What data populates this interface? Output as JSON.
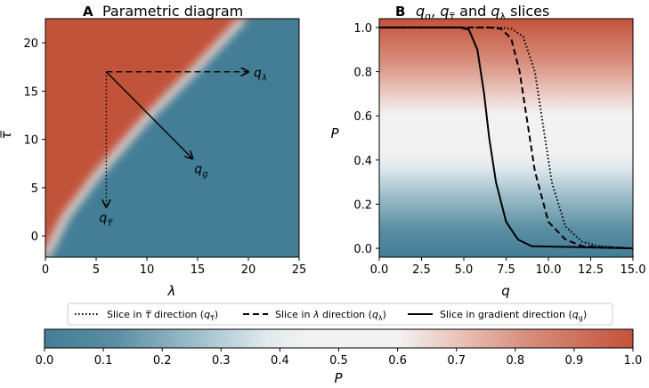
{
  "colors": {
    "low": "#437e96",
    "mid": "#f2f2f2",
    "high": "#c2533a"
  },
  "chart_data": [
    {
      "type": "heatmap",
      "panel_label": "A",
      "title": "Parametric diagram",
      "xlabel": "λ",
      "ylabel": "τ̅",
      "xlim": [
        0,
        25
      ],
      "ylim": [
        -2.2,
        22.5
      ],
      "xticks": [
        0,
        5,
        10,
        15,
        20,
        25
      ],
      "yticks": [
        0,
        5,
        10,
        15,
        20
      ],
      "boundary": [
        [
          0,
          -2.2
        ],
        [
          2,
          2
        ],
        [
          5,
          6.2
        ],
        [
          10,
          12.2
        ],
        [
          15,
          17.5
        ],
        [
          19.5,
          22.5
        ]
      ],
      "arrow_origin": [
        6,
        17
      ],
      "arrows": [
        {
          "name": "q_lambda",
          "label": "q",
          "sub": "λ",
          "to": [
            20,
            17
          ],
          "style": "dashed"
        },
        {
          "name": "q_tau",
          "label": "q",
          "sub": "τ̅",
          "to": [
            6,
            3
          ],
          "style": "dotted"
        },
        {
          "name": "q_g",
          "label": "q",
          "sub": "g",
          "to": [
            14.5,
            8
          ],
          "style": "solid"
        }
      ]
    },
    {
      "type": "line",
      "panel_label": "B",
      "title_parts": [
        "q",
        "g",
        ", ",
        "q",
        "τ̅",
        " and ",
        "q",
        "λ",
        " slices"
      ],
      "xlabel": "q",
      "ylabel": "P",
      "xlim": [
        0,
        15
      ],
      "ylim": [
        -0.04,
        1.04
      ],
      "xticks": [
        0.0,
        2.5,
        5.0,
        7.5,
        10.0,
        12.5,
        15.0
      ],
      "yticks": [
        0.0,
        0.2,
        0.4,
        0.6,
        0.8,
        1.0
      ],
      "background": "horizontal colormap of P",
      "series": [
        {
          "name": "Slice in τ̅ direction (q_τ̅)",
          "style": "dotted",
          "x": [
            0,
            7,
            7.8,
            8.5,
            9.2,
            9.6,
            10.2,
            11,
            12,
            13,
            15
          ],
          "y": [
            1,
            1,
            0.995,
            0.96,
            0.8,
            0.6,
            0.3,
            0.1,
            0.03,
            0.01,
            0
          ]
        },
        {
          "name": "Slice in λ direction (q_λ)",
          "style": "dashed",
          "x": [
            0,
            6.5,
            7.2,
            7.8,
            8.3,
            8.7,
            9.2,
            10,
            11,
            12,
            15
          ],
          "y": [
            1,
            1,
            0.995,
            0.95,
            0.8,
            0.6,
            0.35,
            0.12,
            0.04,
            0.01,
            0
          ]
        },
        {
          "name": "Slice in gradient direction (q_g)",
          "style": "solid",
          "x": [
            0,
            4.8,
            5.3,
            5.8,
            6.2,
            6.5,
            6.9,
            7.5,
            8.2,
            9,
            15
          ],
          "y": [
            1,
            1,
            0.99,
            0.9,
            0.7,
            0.5,
            0.3,
            0.12,
            0.04,
            0.01,
            0
          ]
        }
      ]
    }
  ],
  "legend": {
    "items": [
      {
        "style": "dotted",
        "prefix": "Slice in ",
        "sym": "τ̅",
        "mid": " direction (",
        "q": "q",
        "sub": "τ̅",
        "suffix": ")"
      },
      {
        "style": "dashed",
        "prefix": "Slice in ",
        "sym": "λ",
        "mid": " direction (",
        "q": "q",
        "sub": "λ",
        "suffix": ")"
      },
      {
        "style": "solid",
        "prefix": "Slice in gradient direction (",
        "sym": "",
        "mid": "",
        "q": "q",
        "sub": "g",
        "suffix": ")"
      }
    ]
  },
  "colorbar": {
    "label": "P",
    "ticks": [
      "0.0",
      "0.1",
      "0.2",
      "0.3",
      "0.4",
      "0.5",
      "0.6",
      "0.7",
      "0.8",
      "0.9",
      "1.0"
    ]
  }
}
